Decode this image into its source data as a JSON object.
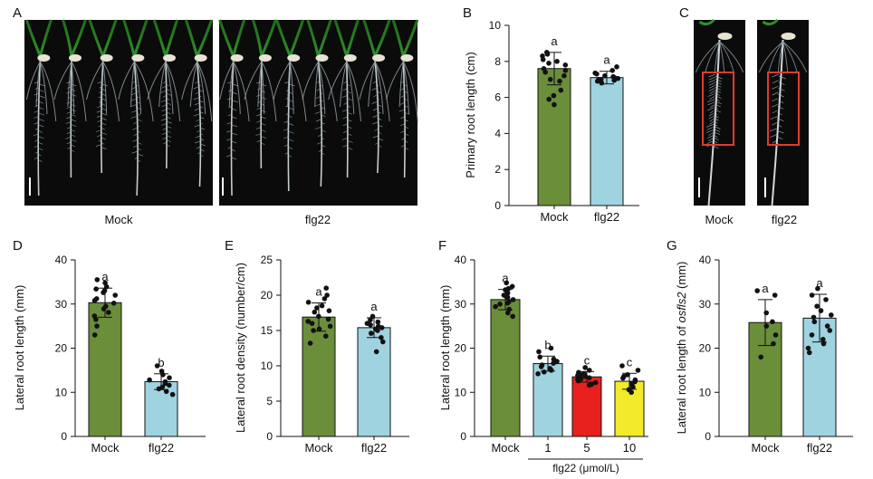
{
  "panels": {
    "A": {
      "letter": "A",
      "labels": [
        "Mock",
        "flg22"
      ]
    },
    "B": {
      "letter": "B"
    },
    "C": {
      "letter": "C",
      "labels": [
        "Mock",
        "flg22"
      ]
    },
    "D": {
      "letter": "D"
    },
    "E": {
      "letter": "E"
    },
    "F": {
      "letter": "F",
      "xgroup_label": "flg22 (μmol/L)"
    },
    "G": {
      "letter": "G"
    }
  },
  "colors": {
    "mock": "#6B8E3A",
    "flg22": "#9FD3E0",
    "flg22_5": "#E8211E",
    "flg22_10": "#F2EA2A",
    "scale_box": "#E23A2F"
  },
  "chart_data": [
    {
      "id": "B",
      "type": "bar",
      "ylabel": "Primary root length (cm)",
      "ylim": [
        0,
        10
      ],
      "yticks": [
        0,
        2,
        4,
        6,
        8,
        10
      ],
      "categories": [
        "Mock",
        "flg22"
      ],
      "values": [
        7.6,
        7.1
      ],
      "errors": [
        0.9,
        0.35
      ],
      "significance": [
        "a",
        "a"
      ],
      "points": [
        [
          8.3,
          8.5,
          8.1,
          7.9,
          8.4,
          7.6,
          7.8,
          7.4,
          7.0,
          7.2,
          6.9,
          6.4,
          6.1,
          5.9,
          5.6,
          8.0,
          7.5
        ],
        [
          7.7,
          7.5,
          7.3,
          7.2,
          7.1,
          7.0,
          6.95,
          6.9,
          7.05,
          6.8,
          7.15,
          7.35,
          7.0
        ]
      ]
    },
    {
      "id": "D",
      "type": "bar",
      "ylabel": "Lateral root length (mm)",
      "ylim": [
        0,
        40
      ],
      "yticks": [
        0,
        10,
        20,
        30,
        40
      ],
      "categories": [
        "Mock",
        "flg22"
      ],
      "values": [
        30.3,
        12.4
      ],
      "errors": [
        3.3,
        1.8
      ],
      "significance": [
        "a",
        "b"
      ],
      "points": [
        [
          35.5,
          34.8,
          33.9,
          33.4,
          32.6,
          32.0,
          31.2,
          30.8,
          30.2,
          29.5,
          28.9,
          28.1,
          27.3,
          26.5,
          25.0,
          23.0,
          33.0
        ],
        [
          16.0,
          14.8,
          14.0,
          13.3,
          12.8,
          12.4,
          12.0,
          11.6,
          11.2,
          10.8,
          10.2,
          9.5
        ]
      ]
    },
    {
      "id": "E",
      "type": "bar",
      "ylabel": "Lateral root density (number/cm)",
      "ylim": [
        0,
        25
      ],
      "yticks": [
        0,
        5,
        10,
        15,
        20,
        25
      ],
      "categories": [
        "Mock",
        "flg22"
      ],
      "values": [
        16.9,
        15.4
      ],
      "errors": [
        2.0,
        1.4
      ],
      "significance": [
        "a",
        "a"
      ],
      "points": [
        [
          21.0,
          20.0,
          19.5,
          19.0,
          18.2,
          17.6,
          17.0,
          16.6,
          16.0,
          15.6,
          15.0,
          14.2,
          13.2,
          18.5,
          16.3,
          15.2,
          17.8
        ],
        [
          17.0,
          16.5,
          16.2,
          16.0,
          15.8,
          15.6,
          15.4,
          15.2,
          15.0,
          14.6,
          14.0,
          13.4,
          12.0
        ]
      ]
    },
    {
      "id": "F",
      "type": "bar",
      "ylabel": "Lateral root length (mm)",
      "ylim": [
        0,
        40
      ],
      "yticks": [
        0,
        10,
        20,
        30,
        40
      ],
      "categories": [
        "Mock",
        "1",
        "5",
        "10"
      ],
      "values": [
        31.0,
        16.5,
        13.5,
        12.5
      ],
      "errors": [
        2.3,
        1.7,
        1.2,
        1.8
      ],
      "significance": [
        "a",
        "b",
        "c",
        "c"
      ],
      "points": [
        [
          34.8,
          34.0,
          33.2,
          32.5,
          32.0,
          31.5,
          31.0,
          30.5,
          30.0,
          29.4,
          28.8,
          28.0,
          27.2,
          33.5,
          31.8,
          30.2
        ],
        [
          20.0,
          19.2,
          18.0,
          17.5,
          17.0,
          16.6,
          16.2,
          15.8,
          15.4,
          15.0,
          14.6,
          14.2
        ],
        [
          15.6,
          15.0,
          14.5,
          14.0,
          13.6,
          13.3,
          13.0,
          12.6,
          12.2,
          11.8,
          14.2,
          12.9,
          13.8,
          11.6
        ],
        [
          16.0,
          15.0,
          14.0,
          13.2,
          12.8,
          12.4,
          12.0,
          11.6,
          11.2,
          10.6,
          10.0,
          13.6
        ]
      ]
    },
    {
      "id": "G",
      "type": "bar",
      "ylabel": "Lateral root length of osfls2 (mm)",
      "ylim": [
        0,
        40
      ],
      "yticks": [
        0,
        10,
        20,
        30,
        40
      ],
      "categories": [
        "Mock",
        "flg22"
      ],
      "values": [
        25.8,
        26.8
      ],
      "errors": [
        5.2,
        5.4
      ],
      "significance": [
        "a",
        "a"
      ],
      "points": [
        [
          33.0,
          32.0,
          28.0,
          26.0,
          25.0,
          23.0,
          21.0,
          18.0
        ],
        [
          33.5,
          32.0,
          31.0,
          29.5,
          28.5,
          27.5,
          27.0,
          26.0,
          25.0,
          24.0,
          23.0,
          22.0,
          21.0,
          20.0,
          19.0
        ]
      ]
    }
  ]
}
